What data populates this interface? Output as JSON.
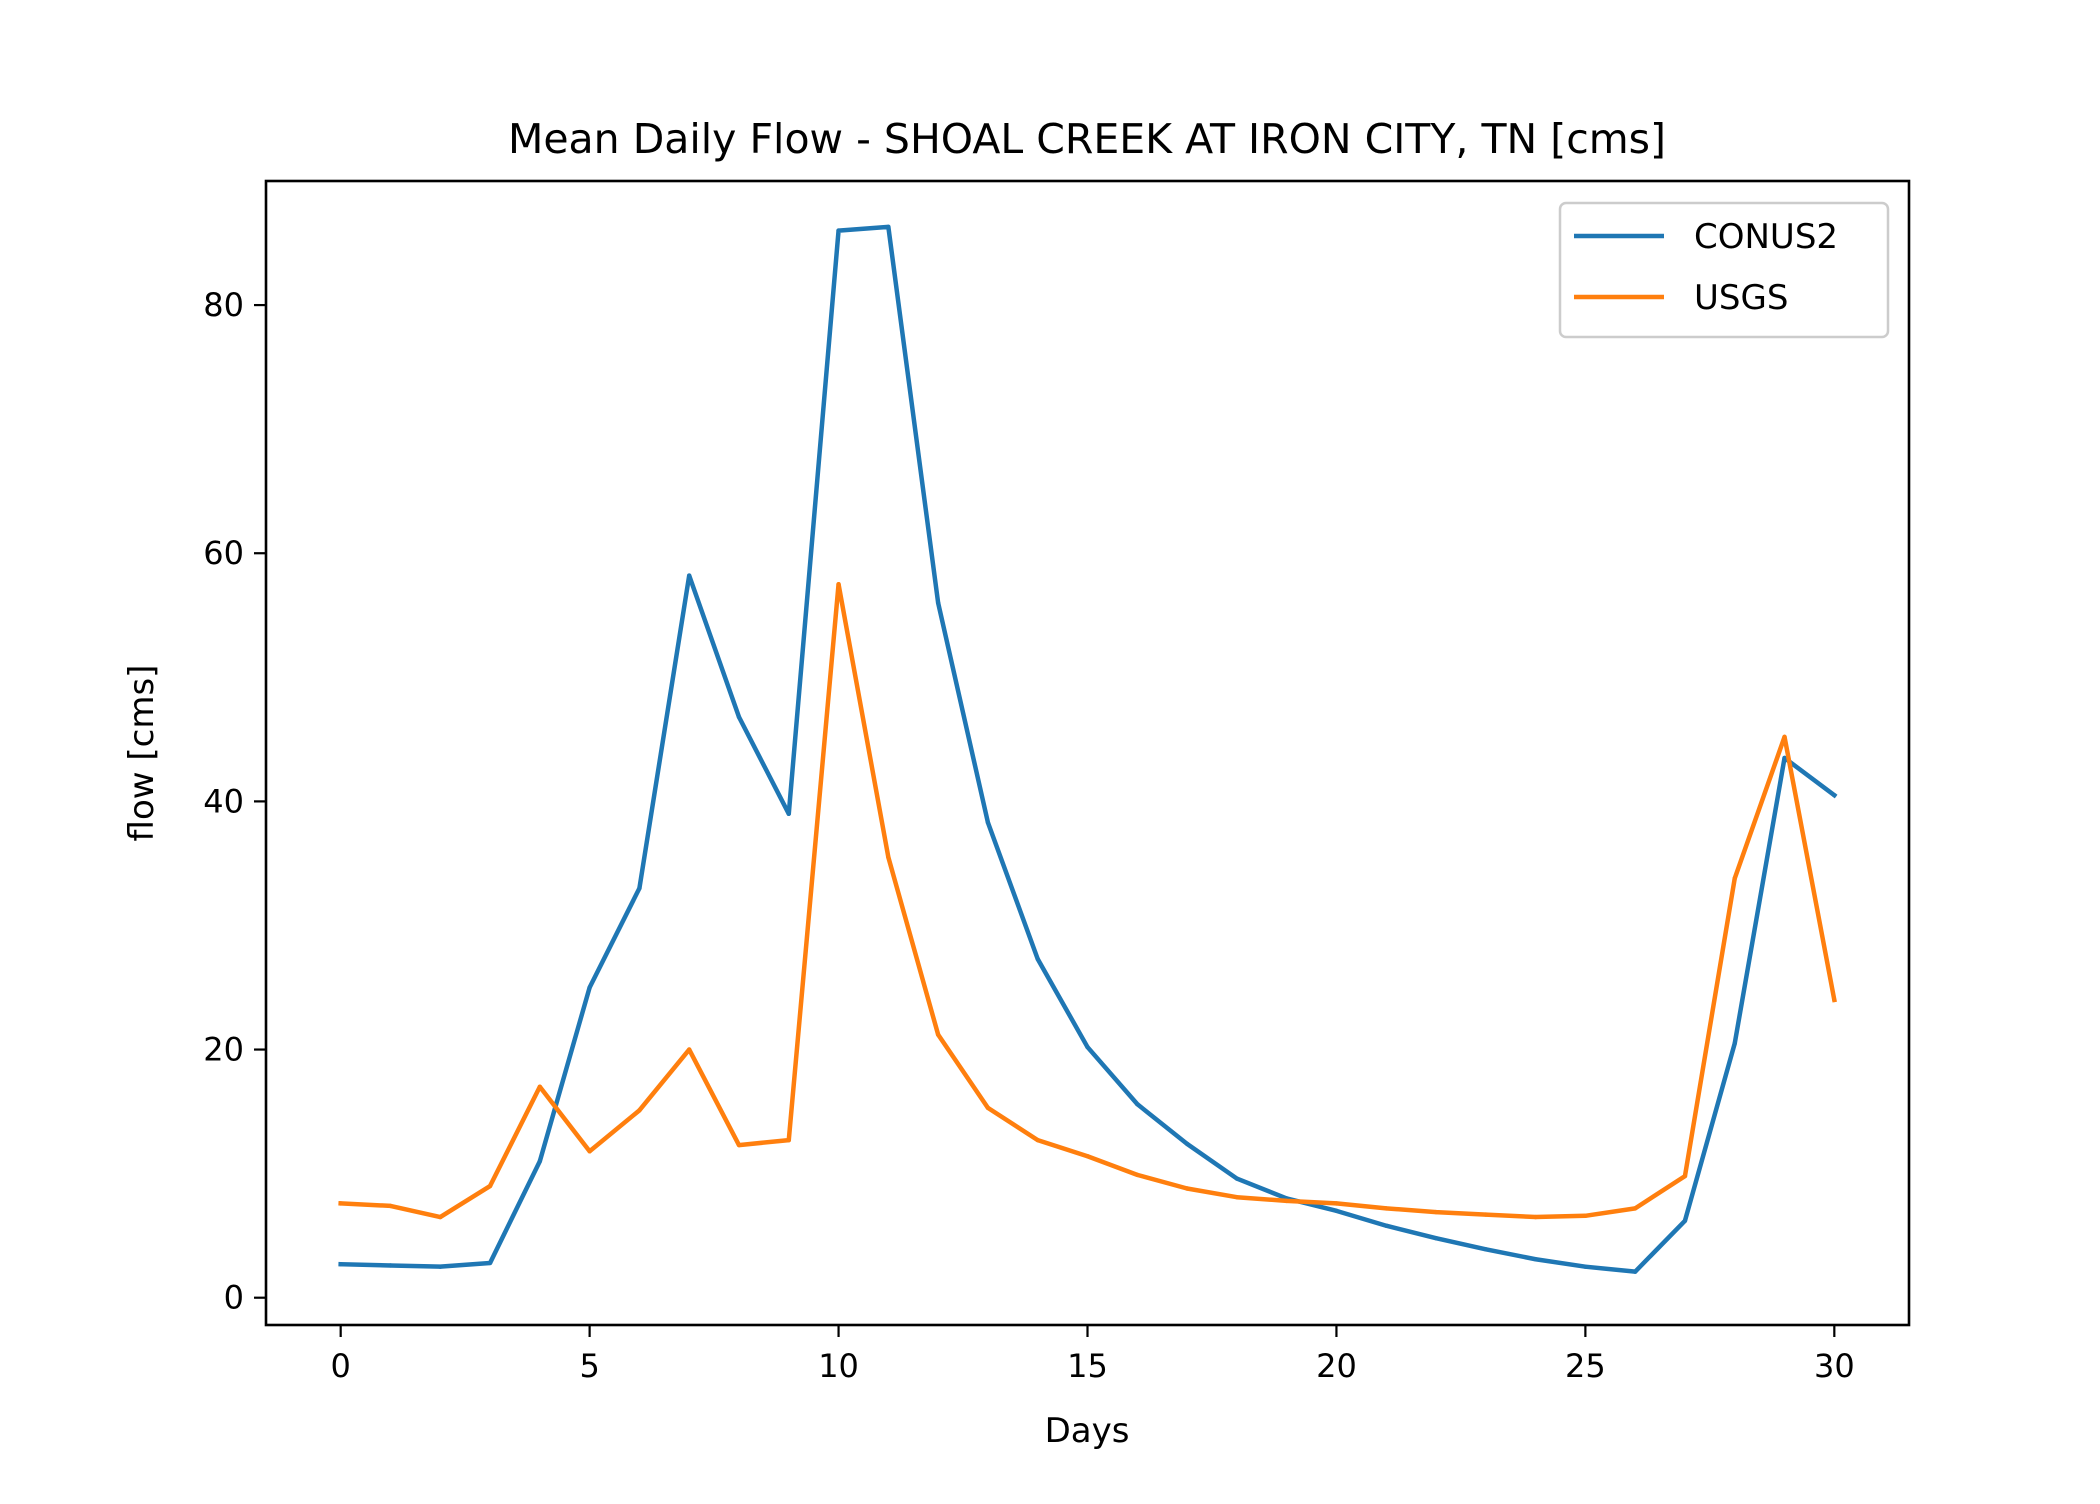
{
  "chart_data": {
    "type": "line",
    "title": "Mean Daily Flow - SHOAL CREEK AT IRON CITY, TN [cms]",
    "xlabel": "Days",
    "ylabel": "flow [cms]",
    "xlim": [
      -1.5,
      31.5
    ],
    "ylim": [
      -2.2,
      90
    ],
    "xticks": [
      0,
      5,
      10,
      15,
      20,
      25,
      30
    ],
    "yticks": [
      0,
      20,
      40,
      60,
      80
    ],
    "xtick_labels": [
      "0",
      "5",
      "10",
      "15",
      "20",
      "25",
      "30"
    ],
    "ytick_labels": [
      "0",
      "20",
      "40",
      "60",
      "80"
    ],
    "grid": false,
    "legend": "top-right",
    "x": [
      0,
      1,
      2,
      3,
      4,
      5,
      6,
      7,
      8,
      9,
      10,
      11,
      12,
      13,
      14,
      15,
      16,
      17,
      18,
      19,
      20,
      21,
      22,
      23,
      24,
      25,
      26,
      27,
      28,
      29,
      30
    ],
    "series": [
      {
        "name": "CONUS2",
        "color": "#1f77b4",
        "values": [
          2.7,
          2.6,
          2.5,
          2.8,
          11.0,
          25.0,
          33.0,
          58.2,
          46.8,
          39.0,
          86.0,
          86.3,
          56.0,
          38.3,
          27.3,
          20.2,
          15.6,
          12.4,
          9.6,
          8.0,
          7.0,
          5.8,
          4.8,
          3.9,
          3.1,
          2.5,
          2.1,
          6.2,
          20.5,
          43.5,
          40.5
        ]
      },
      {
        "name": "USGS",
        "color": "#ff7f0e",
        "values": [
          7.6,
          7.4,
          6.5,
          9.0,
          17.0,
          11.8,
          15.1,
          20.0,
          12.3,
          12.7,
          57.5,
          35.5,
          21.2,
          15.3,
          12.7,
          11.4,
          9.9,
          8.8,
          8.1,
          7.8,
          7.6,
          7.2,
          6.9,
          6.7,
          6.5,
          6.6,
          7.2,
          9.8,
          33.8,
          45.2,
          24.0
        ]
      }
    ]
  }
}
